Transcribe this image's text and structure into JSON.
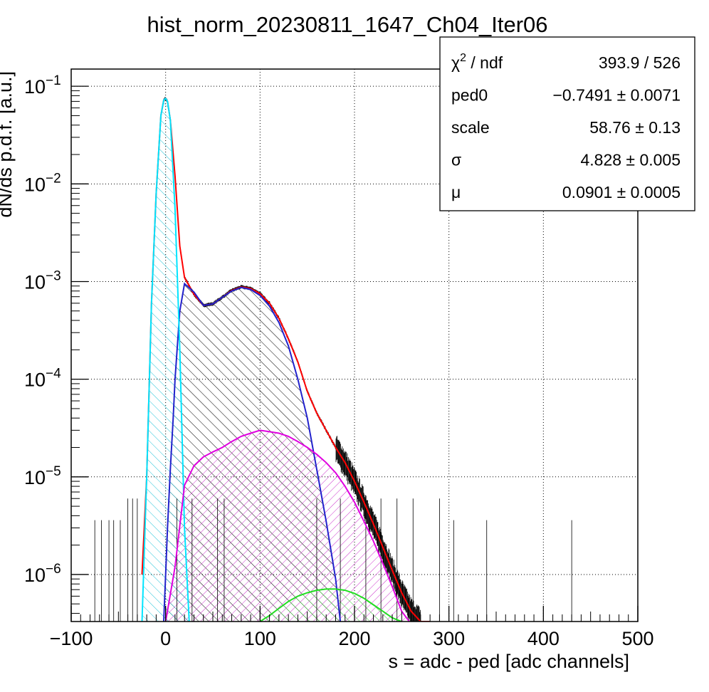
{
  "chart_data": {
    "type": "line",
    "title": "hist_norm_20230811_1647_Ch04_Iter06",
    "xlabel": "s = adc - ped [adc channels]",
    "ylabel": "dN/ds p.d.f. [a.u.]",
    "xlim": [
      -100,
      500
    ],
    "ylim": [
      3.3e-07,
      0.15
    ],
    "yscale": "log",
    "grid": true,
    "x_ticks": [
      {
        "value": -100,
        "label": "−100"
      },
      {
        "value": 0,
        "label": "0"
      },
      {
        "value": 100,
        "label": "100"
      },
      {
        "value": 200,
        "label": "200"
      },
      {
        "value": 300,
        "label": "300"
      },
      {
        "value": 400,
        "label": "400"
      },
      {
        "value": 500,
        "label": "500"
      }
    ],
    "y_ticks": [
      {
        "value": 1e-06,
        "base": "10",
        "exp": "−6"
      },
      {
        "value": 1e-05,
        "base": "10",
        "exp": "−5"
      },
      {
        "value": 0.0001,
        "base": "10",
        "exp": "−4"
      },
      {
        "value": 0.001,
        "base": "10",
        "exp": "−3"
      },
      {
        "value": 0.01,
        "base": "10",
        "exp": "−2"
      },
      {
        "value": 0.1,
        "base": "10",
        "exp": "−1"
      }
    ],
    "stats_box": {
      "rows": [
        {
          "label_base": "χ",
          "label_sup": "2",
          "label_rest": " / ndf",
          "value": "393.9 / 526"
        },
        {
          "label_base": "ped0",
          "label_sup": "",
          "label_rest": "",
          "value": "−0.7491 ± 0.0071"
        },
        {
          "label_base": "scale",
          "label_sup": "",
          "label_rest": "",
          "value": "58.76 ± 0.13"
        },
        {
          "label_base": "σ",
          "label_sup": "",
          "label_rest": "",
          "value": "4.828 ± 0.005"
        },
        {
          "label_base": "μ",
          "label_sup": "",
          "label_rest": "",
          "value": "0.0901 ± 0.0005"
        }
      ]
    },
    "series": [
      {
        "color": "#ff0000",
        "x": [
          -25,
          -20,
          -15,
          -10,
          -5,
          -2,
          0,
          2,
          5,
          10,
          15,
          20,
          30,
          40,
          50,
          60,
          70,
          80,
          90,
          100,
          110,
          120,
          130,
          140,
          150,
          160,
          170,
          180,
          190,
          200,
          210,
          220,
          230,
          240,
          250,
          260,
          270,
          280
        ],
        "y": [
          1e-06,
          1e-05,
          0.0006,
          0.008,
          0.05,
          0.072,
          0.075,
          0.07,
          0.045,
          0.012,
          0.0023,
          0.0011,
          0.00074,
          0.00057,
          0.00059,
          0.00069,
          0.00081,
          0.00088,
          0.00085,
          0.00075,
          0.0006,
          0.00042,
          0.00026,
          0.00015,
          7.5e-05,
          4.5e-05,
          3e-05,
          2e-05,
          1.4e-05,
          9e-06,
          5.5e-06,
          3.3e-06,
          1.9e-06,
          1.1e-06,
          6.5e-07,
          4.2e-07,
          3.3e-07,
          2.5e-07
        ]
      },
      {
        "color": "#2222cc",
        "fill": "#000000",
        "x": [
          -2,
          0,
          2,
          5,
          8,
          10,
          15,
          20,
          30,
          40,
          50,
          60,
          70,
          80,
          90,
          100,
          110,
          120,
          130,
          140,
          150,
          160,
          170,
          180,
          185
        ],
        "y": [
          3.3e-07,
          1e-06,
          3e-06,
          1.2e-05,
          4e-05,
          0.0001,
          0.0005,
          0.00095,
          0.00078,
          0.00057,
          0.00059,
          0.00069,
          0.0008,
          0.00087,
          0.00083,
          0.00072,
          0.00056,
          0.00038,
          0.00022,
          0.0001,
          4e-05,
          1.2e-05,
          3.5e-06,
          9e-07,
          3.3e-07
        ]
      },
      {
        "color": "#00e5ff",
        "fill": "#22c4d8",
        "x": [
          -25,
          -20,
          -15,
          -10,
          -5,
          -2,
          0,
          2,
          5,
          10,
          15,
          20,
          25
        ],
        "y": [
          3.3e-07,
          1e-05,
          0.0006,
          0.008,
          0.05,
          0.072,
          0.075,
          0.07,
          0.045,
          0.0055,
          0.0002,
          3e-06,
          3.3e-07
        ]
      },
      {
        "color": "#e000e0",
        "fill": "#cc33cc",
        "x": [
          0,
          10,
          20,
          30,
          40,
          50,
          60,
          70,
          80,
          90,
          100,
          110,
          120,
          130,
          140,
          150,
          160,
          170,
          180,
          190,
          200,
          210,
          220,
          230,
          240,
          250,
          258
        ],
        "y": [
          3.3e-07,
          1.2e-06,
          8.2e-06,
          1.3e-05,
          1.6e-05,
          1.8e-05,
          2e-05,
          2.3e-05,
          2.6e-05,
          2.8e-05,
          3e-05,
          2.9e-05,
          2.8e-05,
          2.6e-05,
          2.3e-05,
          2e-05,
          1.7e-05,
          1.4e-05,
          1.1e-05,
          8e-06,
          5.5e-06,
          3.5e-06,
          2.2e-06,
          1.3e-06,
          7.5e-07,
          4.2e-07,
          3.3e-07
        ]
      },
      {
        "color": "#22dd22",
        "fill": "#33cc33",
        "x": [
          100,
          110,
          120,
          130,
          140,
          150,
          160,
          170,
          180,
          190,
          200,
          210,
          220,
          230,
          240,
          250
        ],
        "y": [
          3.3e-07,
          3.8e-07,
          4.5e-07,
          5.3e-07,
          6e-07,
          6.5e-07,
          6.9e-07,
          7.1e-07,
          7.1e-07,
          6.9e-07,
          6.4e-07,
          5.7e-07,
          4.9e-07,
          4.2e-07,
          3.6e-07,
          3.3e-07
        ]
      }
    ]
  }
}
